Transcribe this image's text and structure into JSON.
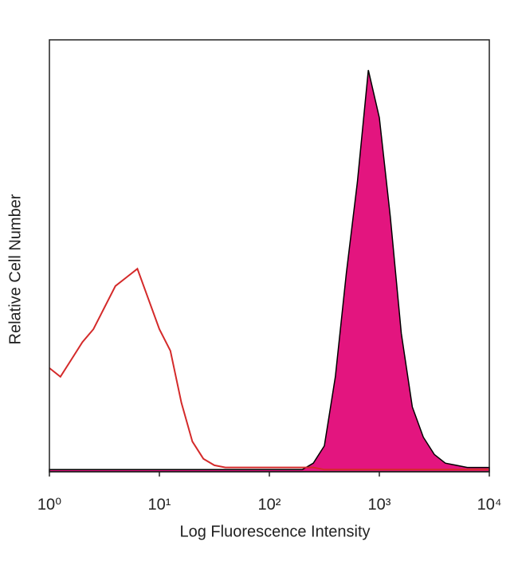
{
  "chart_data": {
    "type": "line",
    "x_label": "Log Fluorescence Intensity",
    "y_label": "Relative Cell Number",
    "x_log": true,
    "xlim": [
      1,
      10000
    ],
    "xticks": [
      {
        "value": 1,
        "label": "10⁰"
      },
      {
        "value": 10,
        "label": "10¹"
      },
      {
        "value": 100,
        "label": "10²"
      },
      {
        "value": 1000,
        "label": "10³"
      },
      {
        "value": 10000,
        "label": "10⁴"
      }
    ],
    "ylim": [
      0,
      100
    ],
    "x": [
      1,
      1.259,
      1.585,
      1.995,
      2.512,
      3.162,
      3.981,
      5.012,
      6.31,
      7.943,
      10,
      12.59,
      15.85,
      19.95,
      25.12,
      31.62,
      39.81,
      50.12,
      63.1,
      79.43,
      100,
      125.9,
      158.5,
      199.5,
      251.2,
      316.2,
      398.1,
      501.2,
      631,
      794.3,
      1000,
      1259,
      1585,
      1995,
      2512,
      3162,
      3981,
      5012,
      6310,
      7943,
      10000
    ],
    "series": [
      {
        "color": "#000000",
        "fill": "#e3157f",
        "values": [
          0.5,
          0.5,
          0.5,
          0.5,
          0.5,
          0.5,
          0.5,
          0.5,
          0.5,
          0.5,
          0.5,
          0.5,
          0.5,
          0.5,
          0.5,
          0.5,
          0.5,
          0.5,
          0.5,
          0.5,
          0.5,
          0.5,
          0.5,
          0.5,
          2,
          6,
          22,
          46,
          67,
          93,
          82,
          59,
          32,
          15,
          8,
          4,
          2,
          1.5,
          1,
          1,
          1
        ]
      },
      {
        "color": "#d42a2a",
        "values": [
          24,
          22,
          26,
          30,
          33,
          38,
          43,
          45,
          47,
          40,
          33,
          28,
          16,
          7,
          3,
          1.5,
          1,
          1,
          1,
          1,
          1,
          1,
          1,
          1,
          1,
          0.5,
          0.5,
          0.5,
          0.5,
          0.5,
          0.5,
          0.5,
          0.5,
          0.5,
          0.5,
          0.5,
          0.5,
          0.5,
          0.5,
          0.5,
          0.5
        ]
      }
    ]
  }
}
